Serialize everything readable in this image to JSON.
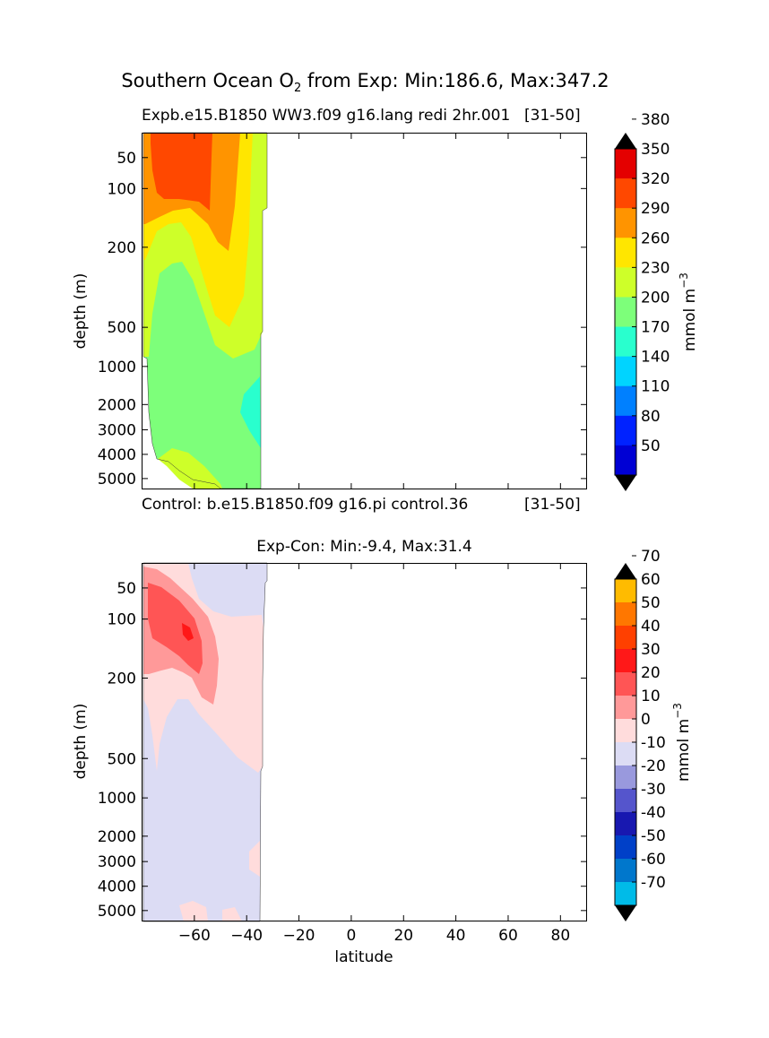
{
  "figure": {
    "suptitle_pre": "Southern Ocean O",
    "suptitle_sub": "2",
    "suptitle_post": " from Exp: Min:186.6, Max:347.2"
  },
  "panel_top": {
    "title_left": "Expb.e15.B1850 WW3.f09 g16.lang redi 2hr.001",
    "title_right": "[31-50]",
    "bottom_left": "Control: b.e15.B1850.f09 g16.pi control.36",
    "bottom_right": "[31-50]",
    "ylabel": "depth (m)",
    "colorbar_label": "mmol m",
    "colorbar_label_sup": "−3"
  },
  "panel_bottom": {
    "title": "Exp-Con: Min:-9.4, Max:31.4",
    "ylabel": "depth (m)",
    "xlabel": "latitude",
    "colorbar_label": "mmol m",
    "colorbar_label_sup": "−3"
  },
  "chart_data": [
    {
      "type": "heatmap",
      "subtype": "filled-contour",
      "title": "Expb.e15.B1850 WW3.f09 g16.lang redi 2hr.001 [31-50]",
      "ylabel": "depth (m)",
      "y_ticks": [
        50,
        100,
        200,
        500,
        1000,
        2000,
        3000,
        4000,
        5000
      ],
      "xlim": [
        -80,
        90
      ],
      "data_lat_extent": [
        -80,
        -33
      ],
      "colorbar_levels": [
        20,
        50,
        80,
        110,
        140,
        170,
        200,
        230,
        260,
        290,
        320,
        350,
        380,
        410
      ],
      "colorbar_tick_labels": [
        "50",
        "80",
        "110",
        "140",
        "170",
        "200",
        "230",
        "260",
        "290",
        "320",
        "350",
        "380"
      ],
      "colorbar_colors": [
        "#000080",
        "#0000d4",
        "#0022ff",
        "#0080ff",
        "#00d4ff",
        "#29ffce",
        "#7dff7a",
        "#ceff29",
        "#ffe600",
        "#ff9400",
        "#ff4800",
        "#e40000",
        "#800000"
      ],
      "colorbar_extend": "both",
      "colorbar_label": "mmol m-3",
      "value_range": [
        186.6,
        347.2
      ]
    },
    {
      "type": "heatmap",
      "subtype": "filled-contour",
      "title": "Exp-Con: Min:-9.4, Max:31.4",
      "xlabel": "latitude",
      "ylabel": "depth (m)",
      "x_ticks": [
        -60,
        -40,
        -20,
        0,
        20,
        40,
        60,
        80
      ],
      "y_ticks": [
        50,
        100,
        200,
        500,
        1000,
        2000,
        3000,
        4000,
        5000
      ],
      "xlim": [
        -80,
        90
      ],
      "data_lat_extent": [
        -80,
        -33
      ],
      "colorbar_levels": [
        -80,
        -70,
        -60,
        -50,
        -40,
        -30,
        -20,
        -10,
        0,
        10,
        20,
        30,
        40,
        50,
        60,
        70,
        80
      ],
      "colorbar_tick_labels": [
        "-70",
        "-60",
        "-50",
        "-40",
        "-30",
        "-20",
        "-10",
        "0",
        "10",
        "20",
        "30",
        "40",
        "50",
        "60",
        "70"
      ],
      "colorbar_colors": [
        "#00ffff",
        "#00bbe8",
        "#0077cc",
        "#0040c8",
        "#1818b0",
        "#5555cc",
        "#9999dd",
        "#dcdcf4",
        "#ffdcdc",
        "#ff9999",
        "#ff5555",
        "#ff1818",
        "#ff4000",
        "#ff7700",
        "#ffbb00",
        "#ffff00"
      ],
      "colorbar_extend": "both",
      "colorbar_label": "mmol m-3",
      "value_range": [
        -9.4,
        31.4
      ]
    }
  ]
}
